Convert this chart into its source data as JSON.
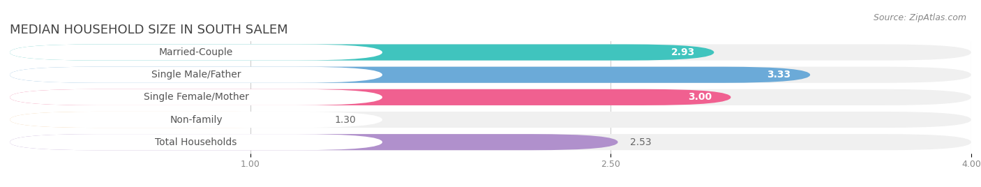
{
  "title": "MEDIAN HOUSEHOLD SIZE IN SOUTH SALEM",
  "source": "Source: ZipAtlas.com",
  "categories": [
    "Married-Couple",
    "Single Male/Father",
    "Single Female/Mother",
    "Non-family",
    "Total Households"
  ],
  "values": [
    2.93,
    3.33,
    3.0,
    1.3,
    2.53
  ],
  "bar_colors": [
    "#40C4BE",
    "#6BAAD8",
    "#F06090",
    "#F5C992",
    "#B090CC"
  ],
  "label_text_colors": [
    "#5a7a60",
    "#4a6a9a",
    "#a03060",
    "#8a6020",
    "#604080"
  ],
  "value_inside": [
    true,
    true,
    true,
    false,
    false
  ],
  "xlim_start": 0,
  "xlim_end": 4.0,
  "xticks": [
    1.0,
    2.5,
    4.0
  ],
  "xtick_labels": [
    "1.00",
    "2.50",
    "4.00"
  ],
  "title_fontsize": 13,
  "source_fontsize": 9,
  "bar_label_fontsize": 10,
  "category_label_fontsize": 10,
  "background_color": "#ffffff",
  "bar_bg_color": "#f0f0f0",
  "bar_height": 0.72,
  "row_padding": 0.28
}
